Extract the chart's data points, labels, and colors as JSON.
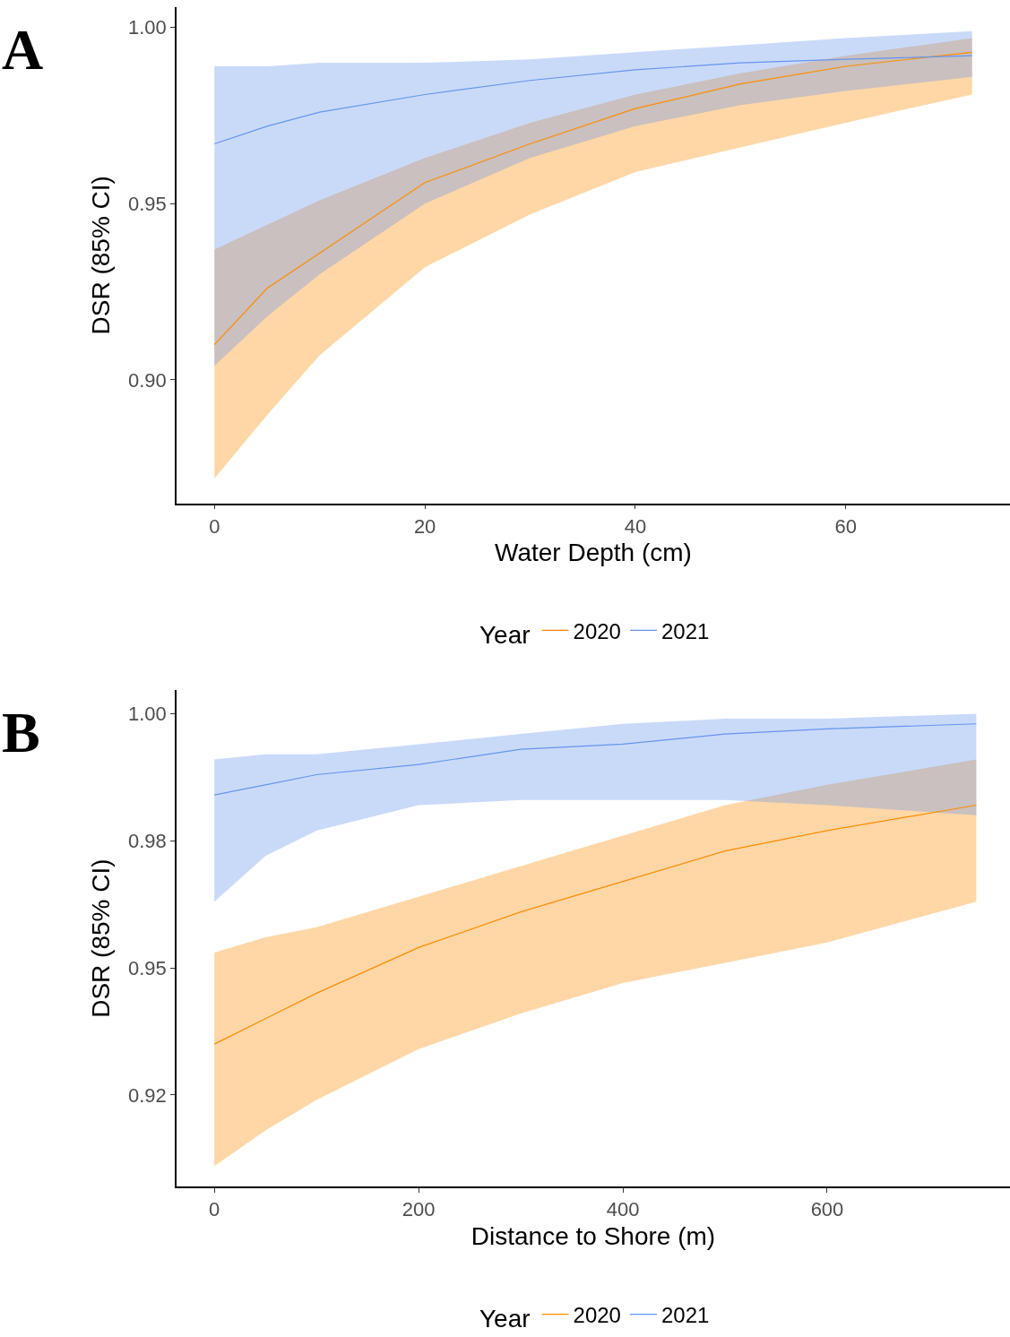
{
  "chart_data": [
    {
      "type": "line",
      "xlabel": "Water Depth (cm)",
      "ylabel": "DSR (85% CI)",
      "legend_title": "Year",
      "annotations": [
        "A"
      ],
      "x": [
        0,
        5,
        10,
        20,
        30,
        40,
        50,
        60,
        72
      ],
      "series": [
        {
          "name": "2020",
          "color": "#ff8c00",
          "values": [
            0.91,
            0.926,
            0.936,
            0.956,
            0.967,
            0.977,
            0.984,
            0.989,
            0.993
          ],
          "lower": [
            0.872,
            0.89,
            0.907,
            0.932,
            0.947,
            0.959,
            0.966,
            0.973,
            0.981
          ],
          "upper": [
            0.937,
            0.944,
            0.951,
            0.963,
            0.973,
            0.981,
            0.987,
            0.992,
            0.997
          ]
        },
        {
          "name": "2021",
          "color": "#6495ed",
          "values": [
            0.967,
            0.972,
            0.976,
            0.981,
            0.985,
            0.988,
            0.99,
            0.991,
            0.992
          ],
          "lower": [
            0.904,
            0.918,
            0.93,
            0.95,
            0.963,
            0.972,
            0.978,
            0.982,
            0.986
          ],
          "upper": [
            0.989,
            0.989,
            0.99,
            0.99,
            0.991,
            0.993,
            0.995,
            0.997,
            0.999
          ]
        }
      ],
      "xlim": [
        -3.6,
        75.6
      ],
      "xticks": [
        0,
        20,
        40,
        60
      ],
      "ylim": [
        0.865,
        1.0058
      ],
      "yticks": [
        {
          "value": 0.9,
          "label": "0.90"
        },
        {
          "value": 0.95,
          "label": "0.95"
        },
        {
          "value": 1.0,
          "label": "1.00"
        }
      ],
      "legend": "bottom",
      "marker": "none",
      "line_style": "solid"
    },
    {
      "type": "line",
      "xlabel": "Distance to Shore (m)",
      "ylabel": "DSR (85% CI)",
      "legend_title": "Year",
      "annotations": [
        "B"
      ],
      "x": [
        0,
        50,
        100,
        200,
        300,
        400,
        500,
        600,
        746
      ],
      "series": [
        {
          "name": "2020",
          "color": "#ff8c00",
          "values": [
            0.935,
            0.94,
            0.945,
            0.954,
            0.961,
            0.967,
            0.973,
            0.977,
            0.982
          ],
          "lower": [
            0.911,
            0.918,
            0.924,
            0.934,
            0.941,
            0.947,
            0.951,
            0.955,
            0.963
          ],
          "upper": [
            0.953,
            0.956,
            0.958,
            0.964,
            0.97,
            0.976,
            0.982,
            0.986,
            0.991
          ]
        },
        {
          "name": "2021",
          "color": "#6495ed",
          "values": [
            0.984,
            0.986,
            0.988,
            0.99,
            0.993,
            0.994,
            0.996,
            0.997,
            0.998
          ],
          "lower": [
            0.963,
            0.972,
            0.977,
            0.982,
            0.983,
            0.983,
            0.983,
            0.982,
            0.98
          ],
          "upper": [
            0.991,
            0.992,
            0.992,
            0.994,
            0.996,
            0.998,
            0.999,
            0.999,
            1.0
          ]
        }
      ],
      "xlim": [
        -37,
        779
      ],
      "xticks": [
        0,
        200,
        400,
        600
      ],
      "ylim": [
        0.907,
        1.0046
      ],
      "yticks": [
        {
          "value": 0.925,
          "label": "0.92"
        },
        {
          "value": 0.95,
          "label": "0.95"
        },
        {
          "value": 0.975,
          "label": "0.98"
        },
        {
          "value": 1.0,
          "label": "1.00"
        }
      ],
      "legend": "bottom",
      "marker": "none",
      "line_style": "solid"
    }
  ]
}
